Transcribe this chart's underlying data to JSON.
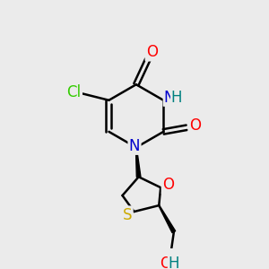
{
  "background_color": "#ebebeb",
  "bond_color": "#000000",
  "atom_colors": {
    "O": "#ff0000",
    "N": "#0000cc",
    "S": "#ccaa00",
    "Cl": "#33cc00",
    "NH_N": "#0000cc",
    "NH_H": "#008080",
    "OH_O": "#ff0000",
    "OH_H": "#008080"
  },
  "font_size": 12,
  "line_width": 1.8,
  "figsize": [
    3.0,
    3.0
  ],
  "dpi": 100
}
